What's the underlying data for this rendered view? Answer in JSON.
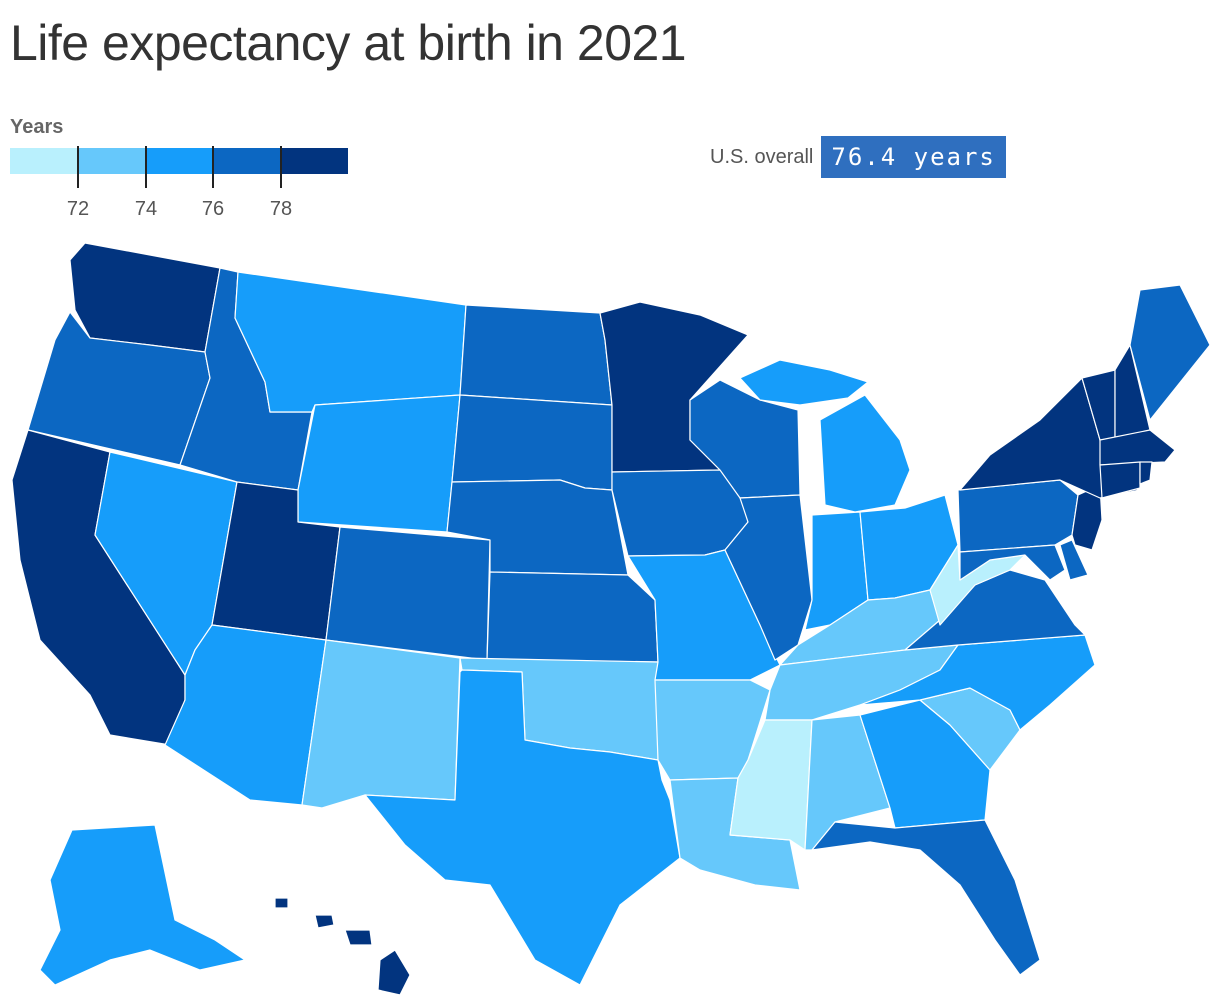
{
  "title": "Life expectancy at birth in 2021",
  "legend": {
    "title": "Years",
    "colors": [
      "#b9f0fd",
      "#66c8fb",
      "#169dfa",
      "#0c67c2",
      "#02347f"
    ],
    "ticks": [
      "72",
      "74",
      "76",
      "78"
    ]
  },
  "us_overall": {
    "label": "U.S. overall",
    "value": "76.4 years"
  },
  "map_data": {
    "type": "choropleth",
    "measure": "life expectancy (years)",
    "bins": [
      "< 72",
      "72–74",
      "74–76",
      "76–78",
      "> 78"
    ],
    "states": {
      "WA": 4,
      "OR": 3,
      "CA": 4,
      "NV": 2,
      "ID": 3,
      "MT": 2,
      "WY": 2,
      "UT": 4,
      "AZ": 2,
      "CO": 3,
      "NM": 1,
      "ND": 3,
      "SD": 3,
      "NE": 3,
      "KS": 3,
      "OK": 1,
      "TX": 2,
      "MN": 4,
      "IA": 3,
      "MO": 2,
      "AR": 1,
      "LA": 1,
      "WI": 3,
      "IL": 3,
      "MI": 2,
      "IN": 2,
      "OH": 2,
      "KY": 1,
      "TN": 1,
      "MS": 0,
      "AL": 1,
      "GA": 2,
      "FL": 3,
      "SC": 1,
      "NC": 2,
      "VA": 3,
      "WV": 0,
      "PA": 3,
      "NY": 4,
      "VT": 4,
      "NH": 4,
      "ME": 3,
      "MA": 4,
      "CT": 4,
      "RI": 4,
      "NJ": 4,
      "DE": 3,
      "MD": 3,
      "AK": 2,
      "HI": 4
    }
  }
}
